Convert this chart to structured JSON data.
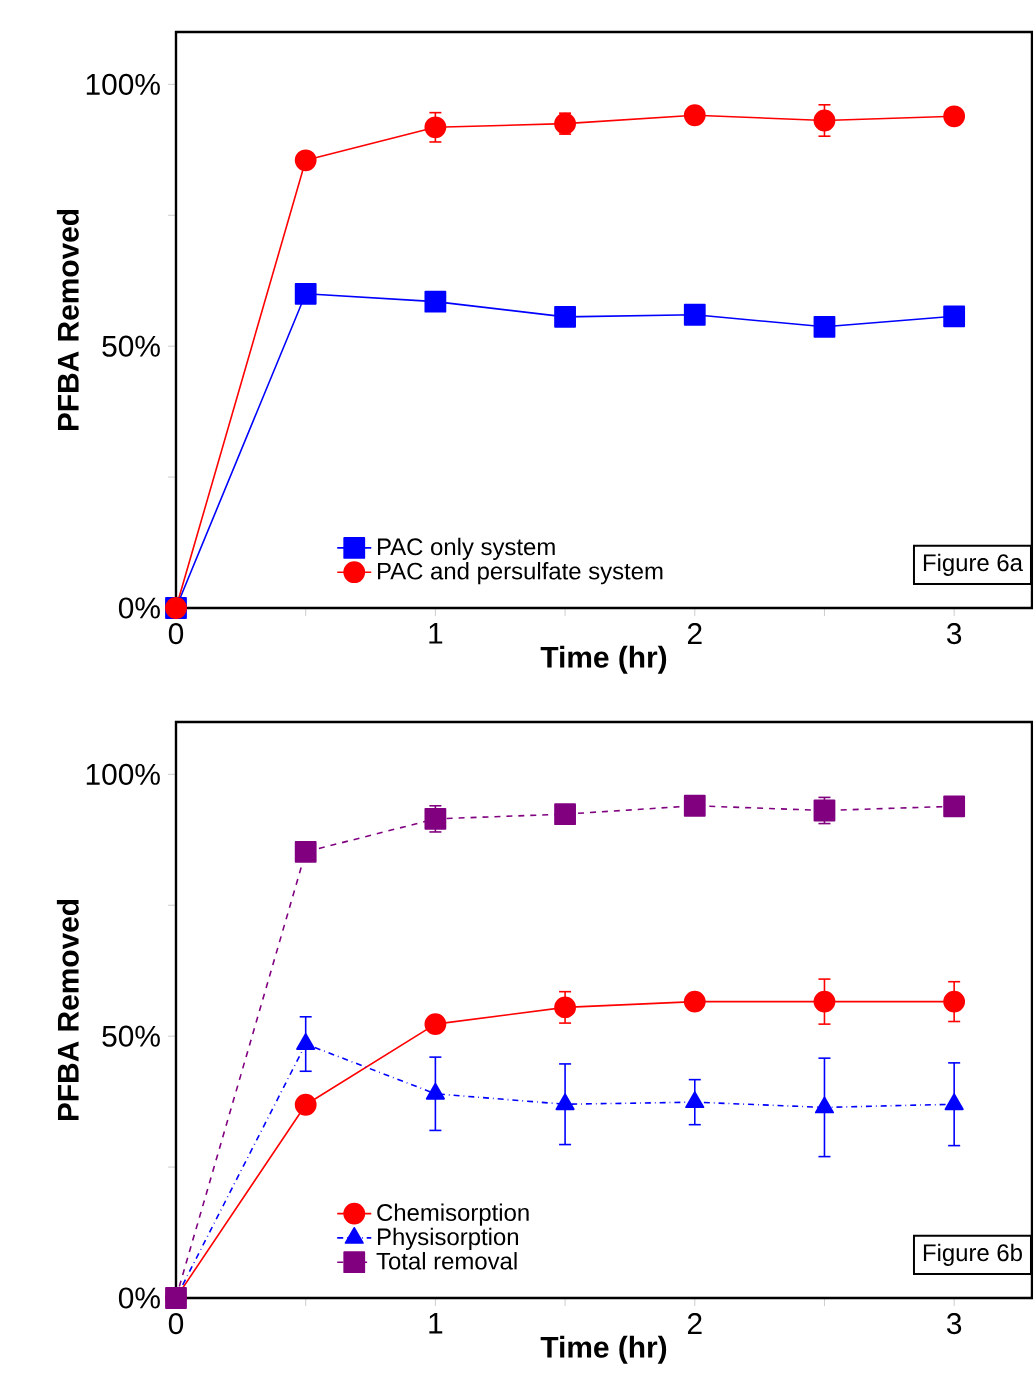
{
  "chart_data": [
    {
      "type": "line",
      "xlabel": "Time (hr)",
      "ylabel": "PFBA Removed",
      "x": [
        0,
        0.5,
        1,
        1.5,
        2,
        2.5,
        3
      ],
      "xlim": [
        0,
        3.3
      ],
      "xticks": [
        0,
        {
          "value": 0.5,
          "label": null
        },
        1,
        {
          "value": 1.5,
          "label": null
        },
        2,
        {
          "value": 2.5,
          "label": null
        },
        3
      ],
      "ylim": [
        0,
        110
      ],
      "yticks": [
        {
          "value": 0,
          "label": "0%"
        },
        {
          "value": 25,
          "label": null
        },
        {
          "value": 50,
          "label": "50%"
        },
        {
          "value": 75,
          "label": null
        },
        {
          "value": 100,
          "label": "100%"
        }
      ],
      "grid": false,
      "legend": "bottom left",
      "annotations": [
        "Figure 6a"
      ],
      "series": [
        {
          "name": "PAC only system",
          "color": "#0000ff",
          "marker": "square",
          "line_style": "solid",
          "values": [
            0,
            60,
            58.5,
            55.6,
            56,
            53.7,
            55.7
          ]
        },
        {
          "name": "PAC and persulfate system",
          "color": "#ff0000",
          "marker": "circle",
          "line_style": "solid",
          "values": [
            0,
            85.5,
            91.8,
            92.5,
            94.1,
            93.1,
            93.9
          ],
          "errors": [
            null,
            null,
            2.8,
            2,
            null,
            3,
            1.5
          ]
        }
      ]
    },
    {
      "type": "line",
      "xlabel": "Time (hr)",
      "ylabel": "PFBA Removed",
      "x": [
        0,
        0.5,
        1,
        1.5,
        2,
        2.5,
        3
      ],
      "xlim": [
        0,
        3.3
      ],
      "xticks": [
        0,
        {
          "value": 0.5,
          "label": null
        },
        1,
        {
          "value": 1.5,
          "label": null
        },
        2,
        {
          "value": 2.5,
          "label": null
        },
        3
      ],
      "ylim": [
        0,
        110
      ],
      "yticks": [
        {
          "value": 0,
          "label": "0%"
        },
        {
          "value": 25,
          "label": null
        },
        {
          "value": 50,
          "label": "50%"
        },
        {
          "value": 75,
          "label": null
        },
        {
          "value": 100,
          "label": "100%"
        }
      ],
      "grid": false,
      "legend": "bottom left",
      "annotations": [
        "Figure 6b"
      ],
      "series": [
        {
          "name": "Chemisorption",
          "color": "#ff0000",
          "marker": "circle",
          "line_style": "solid",
          "values": [
            0,
            36.9,
            52.3,
            55.5,
            56.6,
            56.6,
            56.6
          ],
          "errors": [
            null,
            null,
            null,
            3,
            null,
            4.3,
            3.8
          ]
        },
        {
          "name": "Physisorption",
          "color": "#0000ff",
          "marker": "triangle",
          "line_style": "dashdot",
          "values": [
            0,
            48.5,
            39,
            37,
            37.4,
            36.4,
            37
          ],
          "errors": [
            null,
            5.2,
            7,
            7.7,
            4.3,
            9.4,
            7.9
          ]
        },
        {
          "name": "Total removal",
          "color": "#800080",
          "marker": "square",
          "line_style": "dashed",
          "values": [
            0,
            85.2,
            91.5,
            92.4,
            94,
            93.1,
            93.9
          ],
          "errors": [
            null,
            null,
            2.5,
            null,
            null,
            2.5,
            null
          ]
        }
      ]
    }
  ]
}
